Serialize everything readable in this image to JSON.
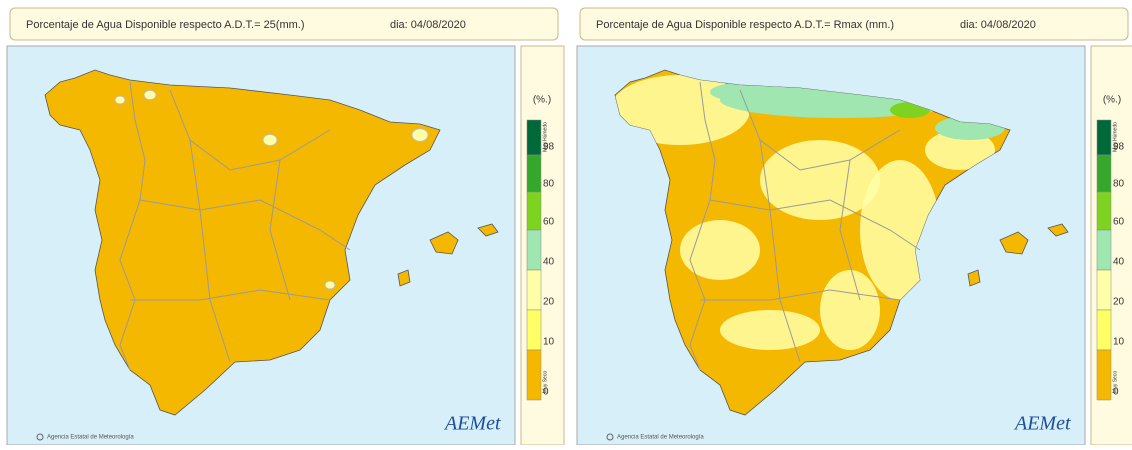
{
  "panels": [
    {
      "title": "Porcentaje de Agua Disponible respecto A.D.T.= 25(mm.)",
      "date": "dia: 04/08/2020",
      "legend": {
        "unit": "(%.)",
        "labels": [
          "98",
          "80",
          "60",
          "40",
          "20",
          "10",
          "0"
        ],
        "top_label": "Muy Húmedo",
        "bottom_label": "Muy Seco",
        "colors": [
          "#00693a",
          "#35a82c",
          "#7ed321",
          "#9fe6b0",
          "#ffffa8",
          "#ffff66",
          "#f5b800"
        ]
      },
      "credit": "Agencia Estatal de Meteorología",
      "logo": "AEMet"
    },
    {
      "title": "Porcentaje de Agua Disponible respecto A.D.T.= Rmax (mm.)",
      "date": "dia: 04/08/2020",
      "legend": {
        "unit": "(%.)",
        "labels": [
          "98",
          "80",
          "60",
          "40",
          "20",
          "10",
          "0"
        ],
        "top_label": "Muy Húmedo",
        "bottom_label": "Muy Seco",
        "colors": [
          "#00693a",
          "#35a82c",
          "#7ed321",
          "#9fe6b0",
          "#ffffa8",
          "#ffff66",
          "#f5b800"
        ]
      },
      "credit": "Agencia Estatal de Meteorología",
      "logo": "AEMet"
    }
  ]
}
